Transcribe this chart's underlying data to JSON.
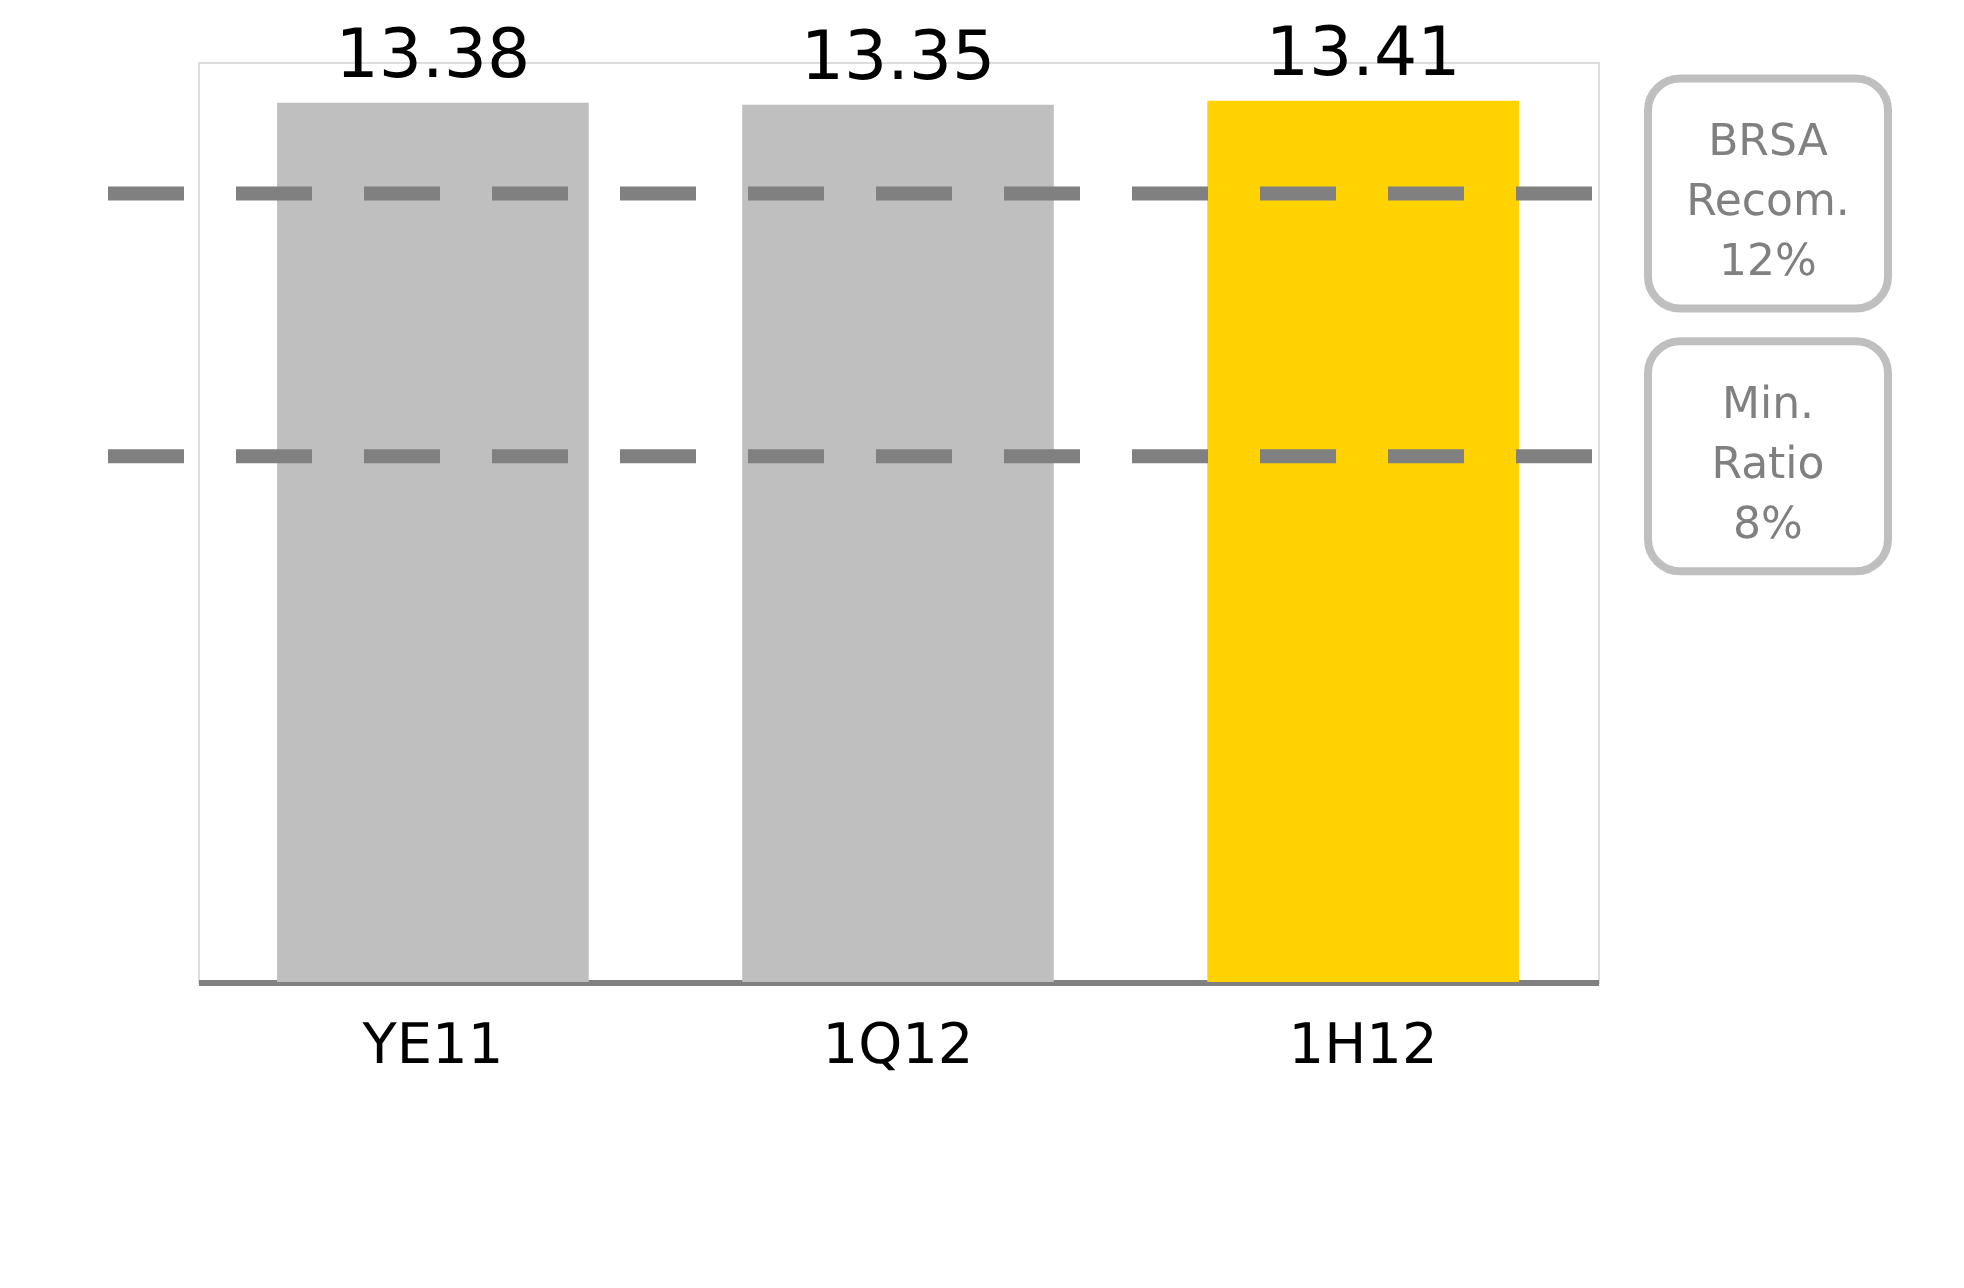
{
  "chart_data": {
    "type": "bar",
    "categories": [
      "YE11",
      "1Q12",
      "1H12"
    ],
    "values": [
      13.38,
      13.35,
      13.41
    ],
    "colors": [
      "#bfbfbf",
      "#bfbfbf",
      "#ffd200"
    ],
    "data_labels": true,
    "ylim": [
      0,
      14
    ],
    "grid": false,
    "legend": false,
    "tick_labels": "x",
    "ref_lines": [
      {
        "axis": "y",
        "value": 12,
        "label": "BRSA Recom. 12%",
        "color": "#808080",
        "line_style": "dashed"
      },
      {
        "axis": "y",
        "value": 8,
        "label": "Min. Ratio 8%",
        "color": "#808080",
        "line_style": "dashed"
      }
    ]
  }
}
